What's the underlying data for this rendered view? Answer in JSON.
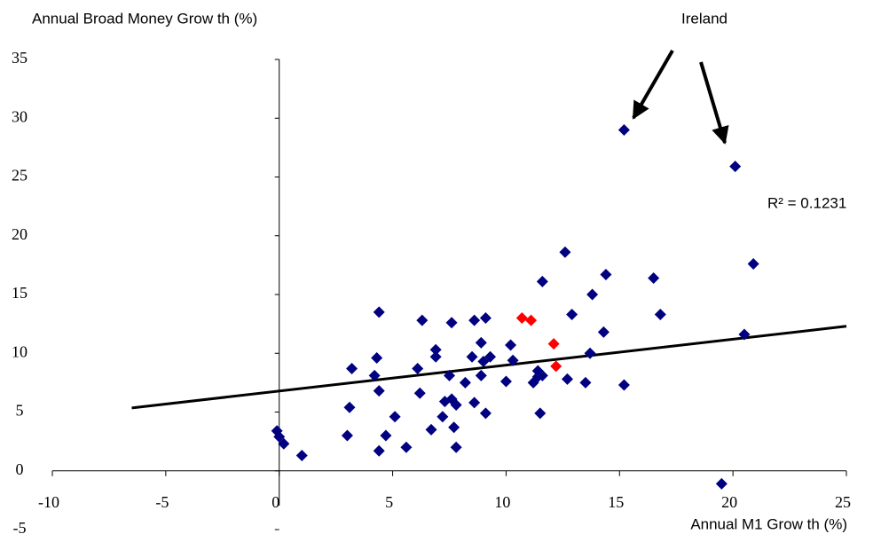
{
  "chart_data": {
    "type": "scatter",
    "y_label": "Annual Broad Money Grow th (%)",
    "x_label": "Annual M1 Grow th (%)",
    "annotations": [
      "Ireland",
      "R² = 0.1231"
    ],
    "xlim": [
      -10,
      25
    ],
    "xticks": [
      -10,
      -5,
      0,
      5,
      10,
      15,
      20,
      25
    ],
    "ylim": [
      -5,
      35
    ],
    "yticks": [
      -5,
      0,
      5,
      10,
      15,
      20,
      25,
      30,
      35
    ],
    "series": [
      {
        "color": "#000080",
        "x": [
          -0.1,
          0,
          0.2,
          1.0,
          3.0,
          3.1,
          3.2,
          4.3,
          4.2,
          4.4,
          4.4,
          4.4,
          4.7,
          5.1,
          5.6,
          6.1,
          6.2,
          6.3,
          6.7,
          6.9,
          6.9,
          7.2,
          7.3,
          7.5,
          7.6,
          7.6,
          7.7,
          7.8,
          7.8,
          8.2,
          8.5,
          8.6,
          8.6,
          8.9,
          8.9,
          9.0,
          9.1,
          9.1,
          9.3,
          10.0,
          10.2,
          10.3,
          11.2,
          11.4,
          11.4,
          11.5,
          11.6,
          11.6,
          12.7,
          12.6,
          12.9,
          13.5,
          13.7,
          13.8,
          14.3,
          14.4,
          15.2,
          15.2,
          16.5,
          16.8,
          20.1,
          20.5,
          20.9,
          19.5
        ],
        "values": [
          3.4,
          2.9,
          2.3,
          1.3,
          3.0,
          5.4,
          8.7,
          9.6,
          8.1,
          6.8,
          13.5,
          1.7,
          3.0,
          4.6,
          2.0,
          8.7,
          6.6,
          12.8,
          3.5,
          10.3,
          9.7,
          4.6,
          5.9,
          8.1,
          12.6,
          6.1,
          3.7,
          2.0,
          5.6,
          7.5,
          9.7,
          5.8,
          12.8,
          8.1,
          10.9,
          9.3,
          4.9,
          13.0,
          9.7,
          7.6,
          10.7,
          9.4,
          7.5,
          8.0,
          8.5,
          4.9,
          8.1,
          16.1,
          7.8,
          18.6,
          13.3,
          7.5,
          10.0,
          15.0,
          11.8,
          16.7,
          7.3,
          29.0,
          16.4,
          13.3,
          25.9,
          11.6,
          17.6,
          -1.1
        ]
      },
      {
        "color": "#ff0000",
        "x": [
          10.7,
          11.1,
          12.1,
          12.2
        ],
        "values": [
          13.0,
          12.8,
          10.8,
          8.9
        ]
      }
    ],
    "trendline": {
      "color": "#000000",
      "x": [
        -6.5,
        25
      ],
      "values": [
        5.35,
        12.3
      ]
    }
  }
}
